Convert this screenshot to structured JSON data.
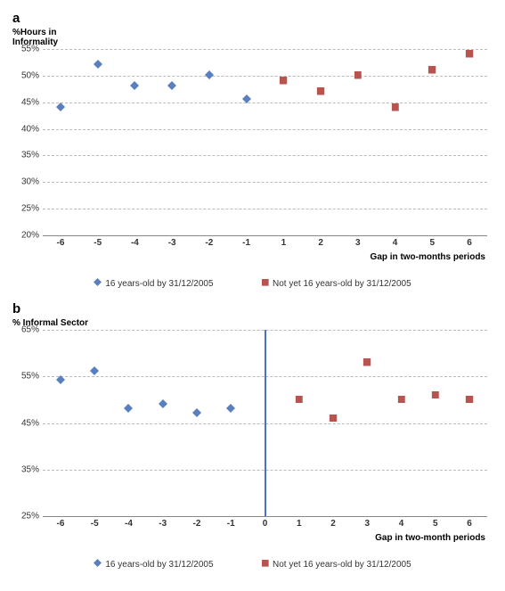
{
  "colors": {
    "blue": "#5a7fbf",
    "red": "#b85450",
    "grid": "#bbbbbb",
    "axis": "#888888",
    "cutoff": "#4a6fd0"
  },
  "marker_size": 10,
  "legend": {
    "blue_label": "16 years-old by 31/12/2005",
    "red_label": "Not yet 16 years-old by 31/12/2005"
  },
  "panel_a": {
    "label": "a",
    "y_title": "%Hours in\nInformality",
    "x_title": "Gap in two-months periods",
    "ymin": 20,
    "ymax": 55,
    "ystep": 5,
    "ytick_format": "percent",
    "x_categories": [
      -6,
      -5,
      -4,
      -3,
      -2,
      -1,
      1,
      2,
      3,
      4,
      5,
      6
    ],
    "show_cutoff": false,
    "blue_points": [
      {
        "x": -6,
        "y": 44
      },
      {
        "x": -5,
        "y": 52
      },
      {
        "x": -4,
        "y": 48
      },
      {
        "x": -3,
        "y": 48
      },
      {
        "x": -2,
        "y": 50
      },
      {
        "x": -1,
        "y": 45.5
      }
    ],
    "red_points": [
      {
        "x": 1,
        "y": 49
      },
      {
        "x": 2,
        "y": 47
      },
      {
        "x": 3,
        "y": 50
      },
      {
        "x": 4,
        "y": 44
      },
      {
        "x": 5,
        "y": 51
      },
      {
        "x": 6,
        "y": 54
      }
    ]
  },
  "panel_b": {
    "label": "b",
    "y_title": "% Informal Sector",
    "x_title": "Gap in two-month periods",
    "ymin": 25,
    "ymax": 65,
    "ystep": 10,
    "ytick_format": "percent",
    "x_categories": [
      -6,
      -5,
      -4,
      -3,
      -2,
      -1,
      0,
      1,
      2,
      3,
      4,
      5,
      6
    ],
    "show_cutoff": true,
    "cutoff_x": 0,
    "blue_points": [
      {
        "x": -6,
        "y": 54
      },
      {
        "x": -5,
        "y": 56
      },
      {
        "x": -4,
        "y": 48
      },
      {
        "x": -3,
        "y": 49
      },
      {
        "x": -2,
        "y": 47
      },
      {
        "x": -1,
        "y": 48
      }
    ],
    "red_points": [
      {
        "x": 1,
        "y": 50
      },
      {
        "x": 2,
        "y": 46
      },
      {
        "x": 3,
        "y": 58
      },
      {
        "x": 4,
        "y": 50
      },
      {
        "x": 5,
        "y": 51
      },
      {
        "x": 6,
        "y": 50
      }
    ]
  }
}
